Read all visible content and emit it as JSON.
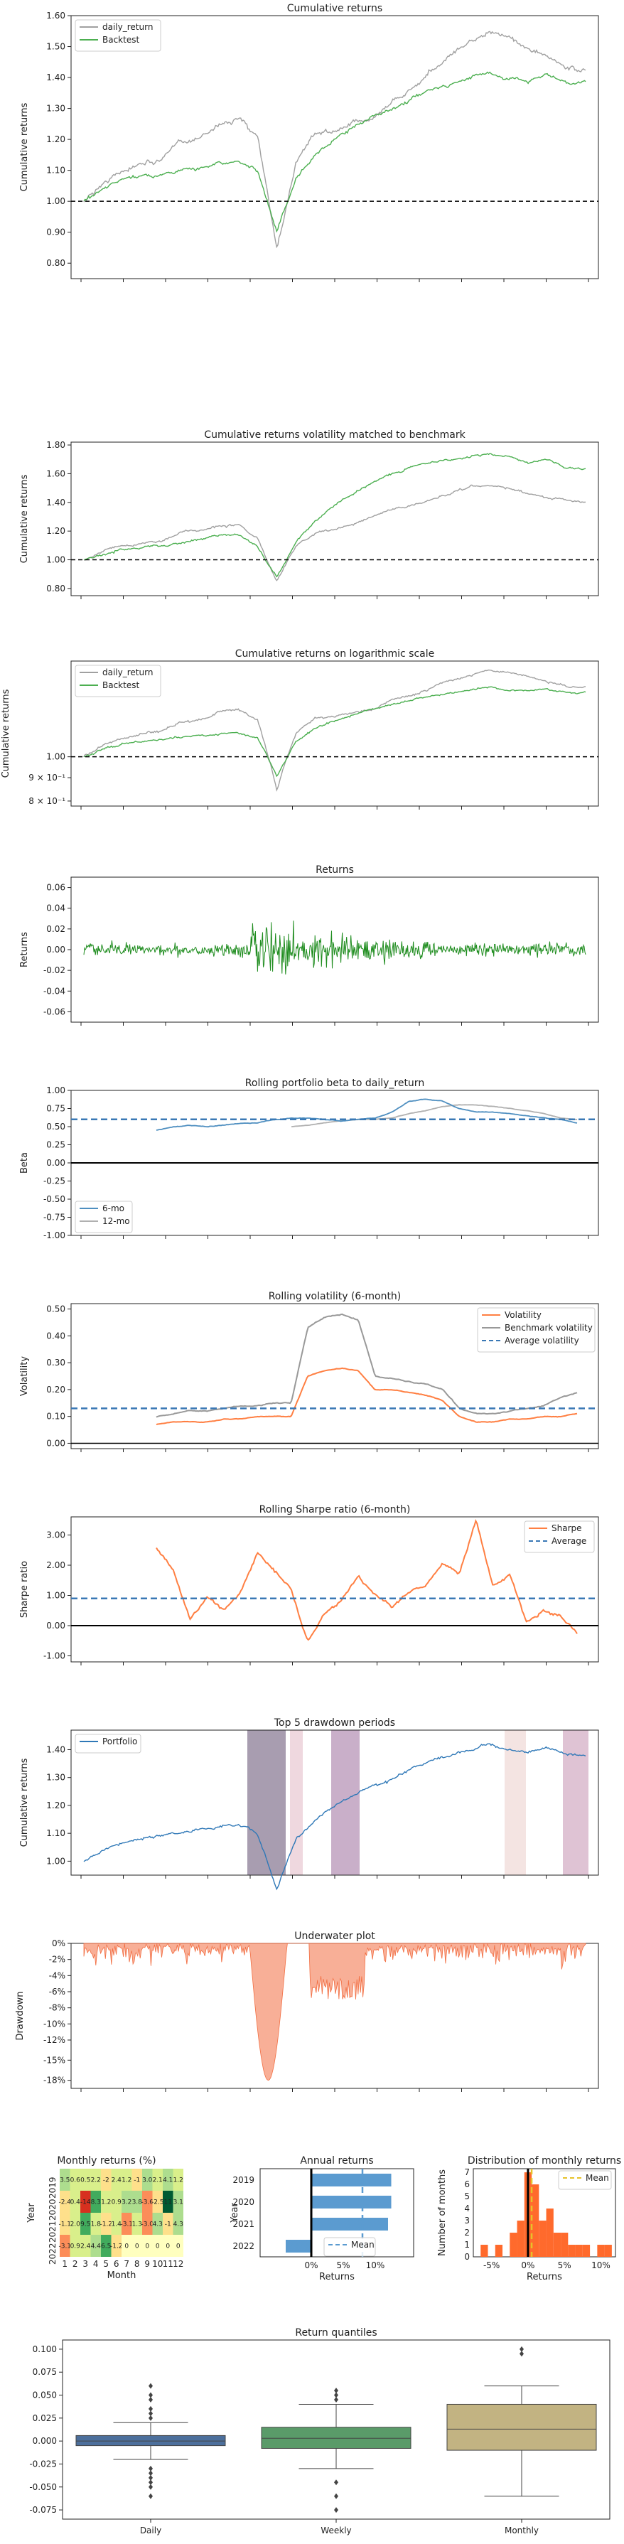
{
  "chart_data": [
    {
      "type": "line",
      "title": "Cumulative returns",
      "ylabel": "Cumulative returns",
      "ylim": [
        0.75,
        1.6
      ],
      "yticks": [
        "0.80",
        "0.90",
        "1.00",
        "1.10",
        "1.20",
        "1.30",
        "1.40",
        "1.50",
        "1.60"
      ],
      "legend": "top-left",
      "series": [
        {
          "name": "daily_return",
          "color": "#a0a0a0",
          "values": [
            1.0,
            1.06,
            1.1,
            1.12,
            1.13,
            1.19,
            1.2,
            1.25,
            1.27,
            1.2,
            0.85,
            1.13,
            1.22,
            1.23,
            1.25,
            1.27,
            1.33,
            1.36,
            1.42,
            1.47,
            1.51,
            1.55,
            1.53,
            1.5,
            1.46,
            1.43,
            1.42
          ]
        },
        {
          "name": "Backtest",
          "color": "#4caf50",
          "values": [
            1.0,
            1.04,
            1.07,
            1.08,
            1.09,
            1.1,
            1.11,
            1.12,
            1.13,
            1.1,
            0.9,
            1.08,
            1.15,
            1.2,
            1.24,
            1.27,
            1.3,
            1.33,
            1.36,
            1.38,
            1.4,
            1.42,
            1.4,
            1.39,
            1.41,
            1.38,
            1.38
          ]
        }
      ],
      "hline": 1.0
    },
    {
      "type": "line",
      "title": "Cumulative returns volatility matched to benchmark",
      "ylabel": "Cumulative returns",
      "ylim": [
        0.75,
        1.82
      ],
      "yticks": [
        "0.80",
        "1.00",
        "1.20",
        "1.40",
        "1.60",
        "1.80"
      ],
      "series": [
        {
          "name": "daily_return",
          "color": "#a0a0a0",
          "values": [
            1.0,
            1.06,
            1.1,
            1.12,
            1.13,
            1.19,
            1.2,
            1.23,
            1.24,
            1.15,
            0.85,
            1.1,
            1.18,
            1.22,
            1.25,
            1.3,
            1.35,
            1.38,
            1.42,
            1.46,
            1.5,
            1.52,
            1.5,
            1.46,
            1.44,
            1.41,
            1.4
          ]
        },
        {
          "name": "Backtest",
          "color": "#4caf50",
          "values": [
            1.0,
            1.04,
            1.07,
            1.09,
            1.1,
            1.12,
            1.14,
            1.17,
            1.18,
            1.1,
            0.88,
            1.12,
            1.27,
            1.38,
            1.46,
            1.55,
            1.6,
            1.65,
            1.68,
            1.7,
            1.72,
            1.74,
            1.72,
            1.68,
            1.7,
            1.64,
            1.63
          ]
        }
      ],
      "hline": 1.0
    },
    {
      "type": "line",
      "title": "Cumulative returns on logarithmic scale",
      "ylabel": "Cumulative returns",
      "yscale": "log",
      "yticks": [
        "1.00",
        "9 × 10⁻¹",
        "8 × 10⁻¹"
      ],
      "legend": "top-left",
      "series": [
        {
          "name": "daily_return",
          "color": "#a0a0a0"
        },
        {
          "name": "Backtest",
          "color": "#4caf50"
        }
      ],
      "hline": 1.0
    },
    {
      "type": "line",
      "title": "Returns",
      "ylabel": "Returns",
      "ylim": [
        -0.07,
        0.07
      ],
      "yticks": [
        "0.06",
        "0.04",
        "0.02",
        "0.00",
        "-0.02",
        "-0.04",
        "-0.06"
      ],
      "series": [
        {
          "name": "",
          "color": "#1e8c1e"
        }
      ]
    },
    {
      "type": "line",
      "title": "Rolling portfolio beta to daily_return",
      "ylabel": "Beta",
      "ylim": [
        -1.0,
        1.0
      ],
      "yticks": [
        "1.00",
        "0.75",
        "0.50",
        "0.25",
        "0.00",
        "-0.25",
        "-0.50",
        "-0.75",
        "-1.00"
      ],
      "legend": "bottom-left",
      "series": [
        {
          "name": "6-mo",
          "color": "#4f8fc0",
          "values": [
            0.45,
            0.5,
            0.52,
            0.5,
            0.52,
            0.55,
            0.55,
            0.6,
            0.62,
            0.62,
            0.6,
            0.58,
            0.6,
            0.62,
            0.7,
            0.85,
            0.88,
            0.85,
            0.75,
            0.7,
            0.7,
            0.68,
            0.65,
            0.62,
            0.6,
            0.55
          ]
        },
        {
          "name": "12-mo",
          "color": "#b0b0b0",
          "values": [
            null,
            null,
            null,
            null,
            null,
            null,
            null,
            null,
            0.5,
            0.52,
            0.55,
            0.58,
            0.6,
            0.6,
            0.62,
            0.68,
            0.72,
            0.78,
            0.8,
            0.8,
            0.78,
            0.75,
            0.72,
            0.68,
            0.62,
            0.6
          ]
        }
      ],
      "hline_mean": 0.6,
      "hline_zero": 0.0
    },
    {
      "type": "line",
      "title": "Rolling volatility (6-month)",
      "ylabel": "Volatility",
      "ylim": [
        -0.02,
        0.52
      ],
      "yticks": [
        "0.50",
        "0.40",
        "0.30",
        "0.20",
        "0.10",
        "0.00"
      ],
      "legend": "top-right",
      "series": [
        {
          "name": "Volatility",
          "color": "#ff7f42",
          "values": [
            0.07,
            0.08,
            0.08,
            0.08,
            0.09,
            0.09,
            0.1,
            0.1,
            0.1,
            0.25,
            0.27,
            0.28,
            0.27,
            0.2,
            0.2,
            0.19,
            0.18,
            0.16,
            0.1,
            0.08,
            0.08,
            0.09,
            0.09,
            0.1,
            0.1,
            0.11
          ]
        },
        {
          "name": "Benchmark volatility",
          "color": "#999999",
          "values": [
            0.1,
            0.11,
            0.12,
            0.12,
            0.13,
            0.14,
            0.14,
            0.15,
            0.15,
            0.43,
            0.47,
            0.48,
            0.46,
            0.25,
            0.24,
            0.23,
            0.22,
            0.2,
            0.13,
            0.11,
            0.11,
            0.12,
            0.13,
            0.14,
            0.17,
            0.19
          ]
        }
      ],
      "average_volatility": 0.13,
      "average_label": "Average volatility"
    },
    {
      "type": "line",
      "title": "Rolling Sharpe ratio (6-month)",
      "ylabel": "Sharpe ratio",
      "ylim": [
        -1.2,
        3.6
      ],
      "yticks": [
        "3.00",
        "2.00",
        "1.00",
        "0.00",
        "-1.00"
      ],
      "legend": "top-right",
      "series": [
        {
          "name": "Sharpe",
          "color": "#ff7f42",
          "values": [
            2.6,
            1.8,
            0.2,
            0.9,
            0.5,
            1.1,
            2.5,
            1.8,
            1.2,
            -0.5,
            0.4,
            0.8,
            1.6,
            1.0,
            0.6,
            1.1,
            1.3,
            2.1,
            1.7,
            3.5,
            1.3,
            1.7,
            0.1,
            0.5,
            0.4,
            -0.3
          ]
        }
      ],
      "average_label": "Average",
      "average_value": 0.9,
      "hline_zero": 0.0
    },
    {
      "type": "line",
      "title": "Top 5 drawdown periods",
      "ylabel": "Cumulative returns",
      "yticks": [
        "1.00",
        "1.10",
        "1.20",
        "1.30",
        "1.40"
      ],
      "legend": "top-left",
      "series": [
        {
          "name": "Portfolio",
          "color": "#2f78b7"
        }
      ]
    },
    {
      "type": "area",
      "title": "Underwater plot",
      "ylabel": "Drawdown",
      "ylim": [
        -18,
        0
      ],
      "yticks": [
        "0%",
        "-2%",
        "-4%",
        "-6%",
        "-8%",
        "-10%",
        "-12%",
        "-15%",
        "-18%"
      ],
      "series": [
        {
          "name": "",
          "color": "#f26e42"
        }
      ]
    },
    {
      "type": "heatmap",
      "title": "Monthly returns (%)",
      "xlabel": "Month",
      "ylabel": "Year",
      "years": [
        "2019",
        "2020",
        "2021",
        "2022"
      ],
      "months": [
        "1",
        "2",
        "3",
        "4",
        "5",
        "6",
        "7",
        "8",
        "9",
        "10",
        "11",
        "12"
      ],
      "values": [
        [
          "3.5",
          "0.6",
          "0.5",
          "2.2",
          "-2",
          "2.4",
          "1.2",
          "-1",
          "3.0",
          "2.1",
          "4.1",
          "1.2"
        ],
        [
          "-2.4",
          "0.4",
          "-14",
          "8.3",
          "1.2",
          "0.9",
          "3.2",
          "3.8",
          "-3.6",
          "-2.5",
          "11",
          "3.1"
        ],
        [
          "-1.1",
          "2.0",
          "9.5",
          "1.8",
          "-1.2",
          "1.4",
          "-3.1",
          "1.3",
          "-3.0",
          "4.3",
          "-1",
          "4.3"
        ],
        [
          "-3.1",
          "0.9",
          "2.4",
          "4.4",
          "6.5",
          "-1.2",
          "0",
          "0",
          "0",
          "0",
          "0",
          "0"
        ]
      ]
    },
    {
      "type": "bar",
      "title": "Annual returns",
      "xlabel": "Returns",
      "ylabel": "Year",
      "categories": [
        "2019",
        "2020",
        "2021",
        "2022"
      ],
      "values": [
        12.5,
        12.5,
        12.0,
        -4.0
      ],
      "xticks": [
        "0%",
        "5%",
        "10%"
      ],
      "mean": 8.0,
      "mean_label": "Mean"
    },
    {
      "type": "bar",
      "title": "Distribution of monthly returns",
      "xlabel": "Returns",
      "ylabel": "Number of months",
      "xticks": [
        "-5%",
        "0%",
        "5%",
        "10%"
      ],
      "yticks": [
        "0",
        "1",
        "2",
        "3",
        "4",
        "5",
        "6",
        "7"
      ],
      "mean_label": "Mean",
      "mean": 0.5,
      "bins": [
        -6.5,
        -5.5,
        -4.5,
        -3.5,
        -2.5,
        -1.5,
        -0.5,
        0.5,
        1.5,
        2.5,
        3.5,
        4.5,
        5.5,
        6.5,
        7.5,
        8.5,
        9.5,
        10.5,
        11.5
      ],
      "counts": [
        1,
        0,
        1,
        0,
        2,
        3,
        7,
        6,
        3,
        4,
        2,
        2,
        1,
        1,
        1,
        0,
        1,
        1
      ]
    },
    {
      "type": "box",
      "title": "Return quantiles",
      "categories": [
        "Daily",
        "Weekly",
        "Monthly"
      ],
      "yticks": [
        "0.100",
        "0.075",
        "0.050",
        "0.025",
        "0.000",
        "-0.025",
        "-0.050",
        "-0.075"
      ],
      "ylim": [
        -0.085,
        0.11
      ],
      "boxes": [
        {
          "q1": -0.005,
          "median": 0.0,
          "q3": 0.006,
          "whisker_low": -0.02,
          "whisker_high": 0.02,
          "color": "#4c6f9c"
        },
        {
          "q1": -0.008,
          "median": 0.003,
          "q3": 0.015,
          "whisker_low": -0.03,
          "whisker_high": 0.04,
          "color": "#5a9b69"
        },
        {
          "q1": -0.01,
          "median": 0.013,
          "q3": 0.04,
          "whisker_low": -0.06,
          "whisker_high": 0.06,
          "color": "#c2b382"
        }
      ]
    }
  ]
}
